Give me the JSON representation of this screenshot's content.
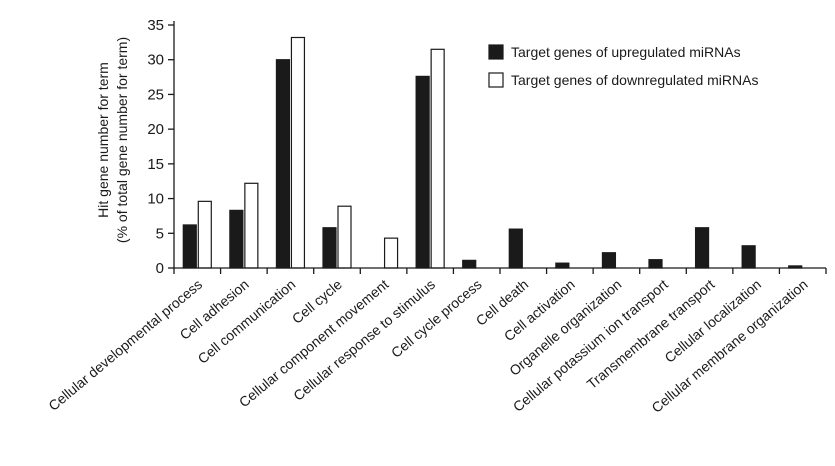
{
  "chart_data": {
    "type": "bar",
    "title": "",
    "ylabel": {
      "line1": "Hit gene number for term",
      "line2": "(% of total gene number for term)"
    },
    "xlabel": "",
    "ylim": [
      0,
      35
    ],
    "yticks": [
      0,
      5,
      10,
      15,
      20,
      25,
      30,
      35
    ],
    "categories": [
      "Cellular developmental process",
      "Cell adhesion",
      "Cell communication",
      "Cell cycle",
      "Cellular component movement",
      "Cellular response to stimulus",
      "Cell cycle process",
      "Cell death",
      "Cell activation",
      "Organelle organization",
      "Cellular potassium ion transport",
      "Transmembrane transport",
      "Cellular localization",
      "Cellular membrane organization"
    ],
    "series": [
      {
        "name": "Target genes of upregulated miRNAs",
        "fill": "#1a1a1a",
        "values": [
          6.2,
          8.3,
          30.0,
          5.8,
          0,
          27.6,
          1.1,
          5.6,
          0.7,
          2.2,
          1.2,
          5.8,
          3.2,
          0.3
        ]
      },
      {
        "name": "Target genes of downregulated miRNAs",
        "fill": "#ffffff",
        "values": [
          9.6,
          12.2,
          33.2,
          8.9,
          4.3,
          31.5,
          0,
          0,
          0,
          0,
          0,
          0,
          0,
          0
        ]
      }
    ],
    "legend_position": "upper-right",
    "grid": false
  }
}
